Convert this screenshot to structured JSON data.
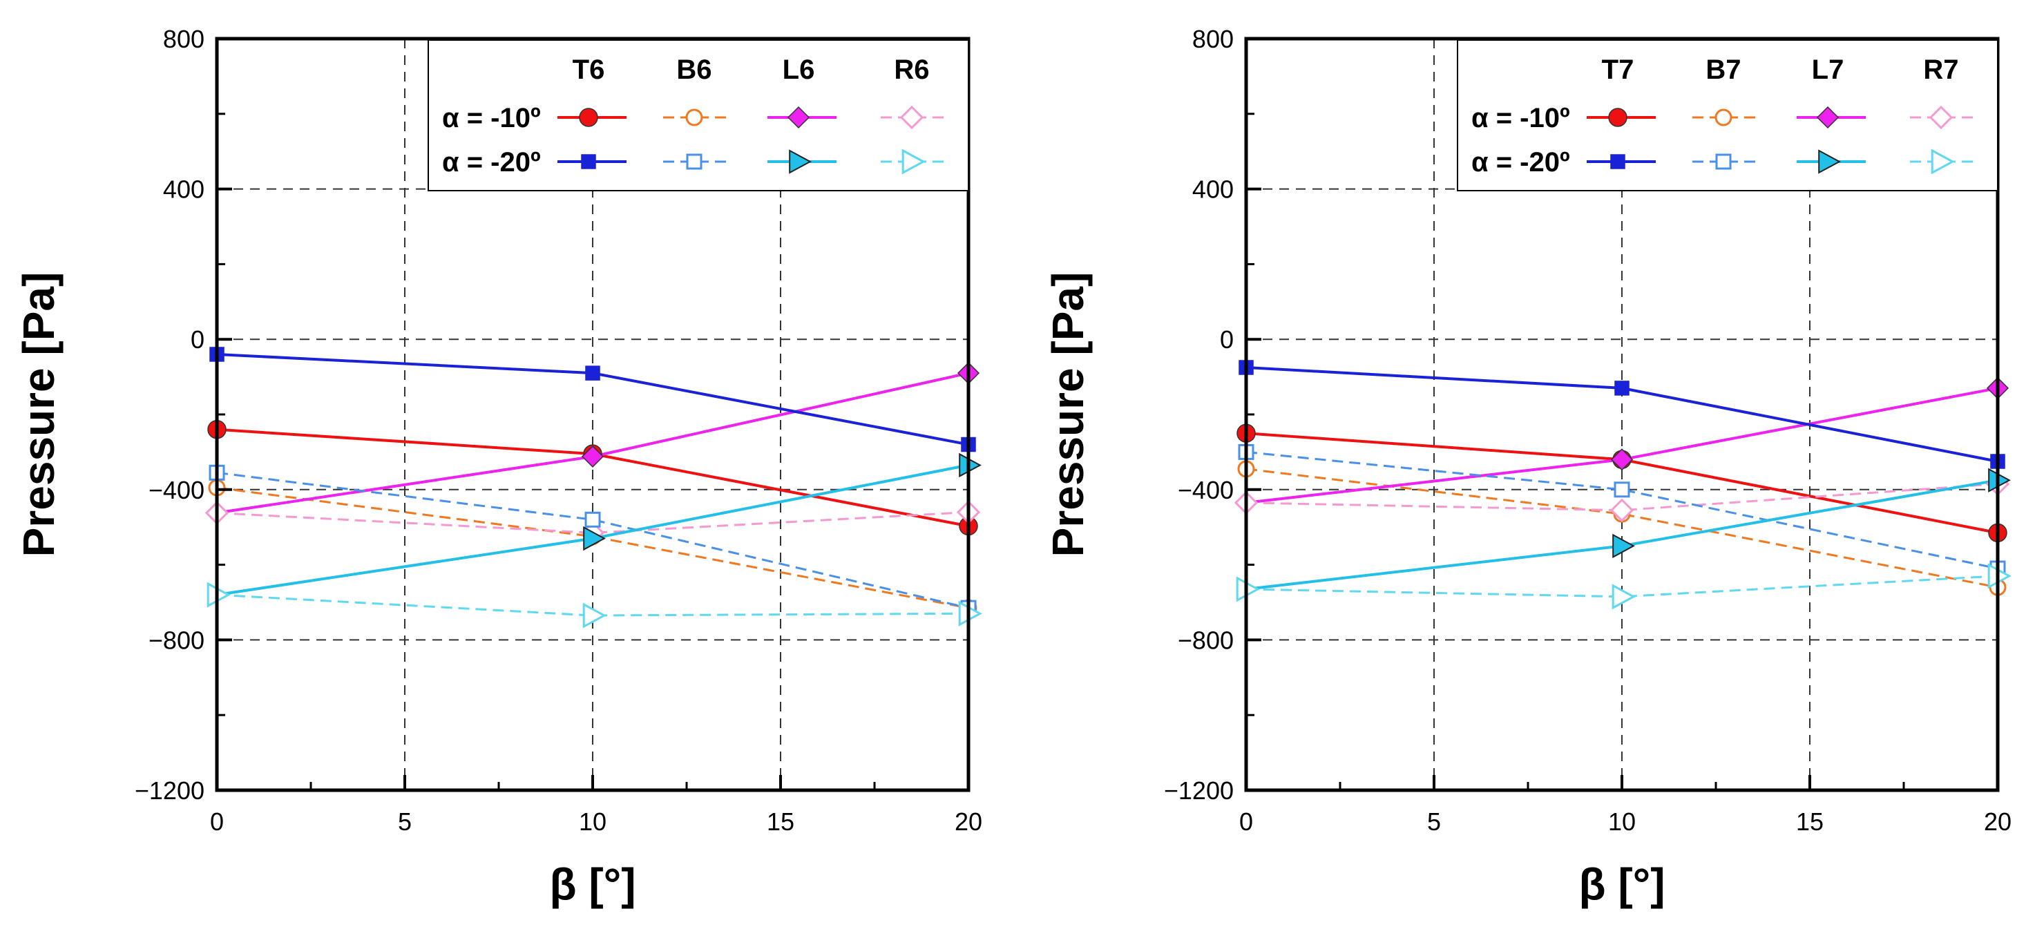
{
  "figure": {
    "description_labels": {
      "x_axis_symbol": "β",
      "x_axis_unit": "[°]",
      "y_axis_title": "Pressure [Pa]"
    }
  },
  "chart_data": [
    {
      "type": "line",
      "panel": "left",
      "title": "",
      "xlabel": "β [°]",
      "ylabel": "Pressure [Pa]",
      "xlim": [
        0,
        20
      ],
      "ylim": [
        -1200,
        800
      ],
      "xticks": [
        0,
        5,
        10,
        15,
        20
      ],
      "yticks": [
        -1200,
        -800,
        -400,
        0,
        400,
        800
      ],
      "xtick_labels": [
        "0",
        "5",
        "10",
        "15",
        "20"
      ],
      "ytick_labels": [
        "−1200",
        "−800",
        "−400",
        "0",
        "400",
        "800"
      ],
      "grid": true,
      "legend": {
        "location": "top-right",
        "columns": [
          "T6",
          "B6",
          "L6",
          "R6"
        ],
        "rows": [
          "α = -10º",
          "α = -20º"
        ]
      },
      "x": [
        0,
        10,
        20
      ],
      "series": [
        {
          "name": "T6, α = -10º",
          "color": "#ee1111",
          "dash": false,
          "marker": "circle-filled",
          "values": [
            -240,
            -305,
            -497
          ]
        },
        {
          "name": "B6, α = -10º",
          "color": "#f07820",
          "dash": true,
          "marker": "circle-open",
          "values": [
            -395,
            -525,
            -715
          ]
        },
        {
          "name": "L6, α = -10º",
          "color": "#ee22ee",
          "dash": false,
          "marker": "diamond-filled",
          "values": [
            -462,
            -312,
            -90
          ]
        },
        {
          "name": "R6, α = -10º",
          "color": "#f49ad0",
          "dash": true,
          "marker": "diamond-open",
          "values": [
            -462,
            -515,
            -460
          ]
        },
        {
          "name": "T6, α = -20º",
          "color": "#1a22d8",
          "dash": false,
          "marker": "square-filled",
          "values": [
            -40,
            -90,
            -280
          ]
        },
        {
          "name": "B6, α = -20º",
          "color": "#4a90e8",
          "dash": true,
          "marker": "square-open",
          "values": [
            -355,
            -480,
            -715
          ]
        },
        {
          "name": "L6, α = -20º",
          "color": "#22c0e8",
          "dash": false,
          "marker": "triangle-filled",
          "values": [
            -680,
            -530,
            -335
          ]
        },
        {
          "name": "R6, α = -20º",
          "color": "#60d8f0",
          "dash": true,
          "marker": "triangle-open",
          "values": [
            -680,
            -735,
            -730
          ]
        }
      ]
    },
    {
      "type": "line",
      "panel": "right",
      "title": "",
      "xlabel": "β [°]",
      "ylabel": "Pressure [Pa]",
      "xlim": [
        0,
        20
      ],
      "ylim": [
        -1200,
        800
      ],
      "xticks": [
        0,
        5,
        10,
        15,
        20
      ],
      "yticks": [
        -1200,
        -800,
        -400,
        0,
        400,
        800
      ],
      "xtick_labels": [
        "0",
        "5",
        "10",
        "15",
        "20"
      ],
      "ytick_labels": [
        "−1200",
        "−800",
        "−400",
        "0",
        "400",
        "800"
      ],
      "grid": true,
      "legend": {
        "location": "top-right",
        "columns": [
          "T7",
          "B7",
          "L7",
          "R7"
        ],
        "rows": [
          "α = -10º",
          "α = -20º"
        ]
      },
      "x": [
        0,
        10,
        20
      ],
      "series": [
        {
          "name": "T7, α = -10º",
          "color": "#ee1111",
          "dash": false,
          "marker": "circle-filled",
          "values": [
            -250,
            -320,
            -515
          ]
        },
        {
          "name": "B7, α = -10º",
          "color": "#f07820",
          "dash": true,
          "marker": "circle-open",
          "values": [
            -345,
            -465,
            -660
          ]
        },
        {
          "name": "L7, α = -10º",
          "color": "#ee22ee",
          "dash": false,
          "marker": "diamond-filled",
          "values": [
            -435,
            -320,
            -130
          ]
        },
        {
          "name": "R7, α = -10º",
          "color": "#f49ad0",
          "dash": true,
          "marker": "diamond-open",
          "values": [
            -435,
            -455,
            -385
          ]
        },
        {
          "name": "T7, α = -20º",
          "color": "#1a22d8",
          "dash": false,
          "marker": "square-filled",
          "values": [
            -75,
            -130,
            -325
          ]
        },
        {
          "name": "B7, α = -20º",
          "color": "#4a90e8",
          "dash": true,
          "marker": "square-open",
          "values": [
            -300,
            -400,
            -610
          ]
        },
        {
          "name": "L7, α = -20º",
          "color": "#22c0e8",
          "dash": false,
          "marker": "triangle-filled",
          "values": [
            -665,
            -550,
            -375
          ]
        },
        {
          "name": "R7, α = -20º",
          "color": "#60d8f0",
          "dash": true,
          "marker": "triangle-open",
          "values": [
            -665,
            -685,
            -630
          ]
        }
      ]
    }
  ]
}
